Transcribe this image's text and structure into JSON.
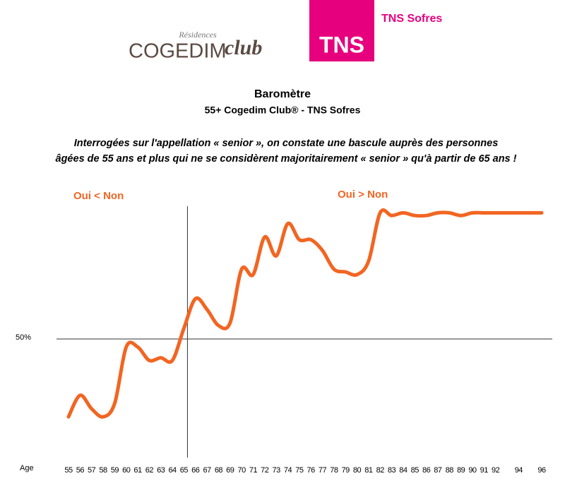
{
  "chart_data": {
    "type": "line",
    "logos": {
      "residences": "Résidences",
      "cogedim": "COGEDIM",
      "club": "club",
      "tns": "TNS",
      "tns_sofres": "TNS Sofres"
    },
    "title": "Baromètre",
    "subtitle": "55+ Cogedim Club® - TNS Sofres",
    "description": [
      "Interrogées sur l'appellation « senior », on constate une bascule auprès des personnes",
      "âgées de 55 ans et plus qui ne se considèrent majoritairement « senior » qu'à partir de 65 ans !"
    ],
    "annotations": [
      "Oui < Non",
      "Oui > Non"
    ],
    "x_label": "Age",
    "categories": [
      "55",
      "56",
      "57",
      "58",
      "59",
      "60",
      "61",
      "62",
      "63",
      "64",
      "65",
      "66",
      "67",
      "68",
      "69",
      "70",
      "71",
      "72",
      "73",
      "74",
      "75",
      "76",
      "77",
      "78",
      "79",
      "80",
      "81",
      "82",
      "83",
      "84",
      "85",
      "86",
      "87",
      "88",
      "89",
      "90",
      "91",
      "92",
      null,
      "94",
      null,
      "96"
    ],
    "series": [
      {
        "name": "Oui",
        "color": "#f26522",
        "values": [
          21,
          29,
          24,
          21,
          26,
          47,
          47,
          42,
          43,
          42,
          54,
          65,
          61,
          55,
          56,
          76,
          74,
          88,
          81,
          93,
          87,
          87,
          83,
          76,
          75,
          74,
          79,
          97,
          96,
          97,
          96,
          96,
          97,
          97,
          96,
          97,
          97,
          97,
          97,
          97,
          97,
          97
        ]
      }
    ],
    "ylim": [
      0,
      100
    ],
    "yticks": [
      {
        "value": 50,
        "label": "50%"
      }
    ],
    "xline": "65",
    "grid": true
  }
}
